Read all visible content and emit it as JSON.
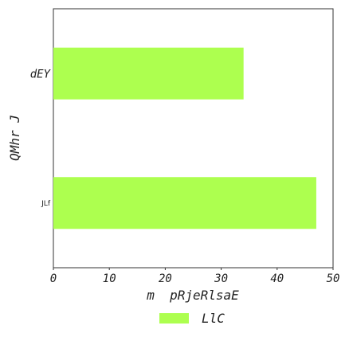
{
  "chart_data": {
    "type": "bar",
    "orientation": "horizontal",
    "categories": [
      "dEY",
      "JLf"
    ],
    "series": [
      {
        "name": "LlC",
        "values": [
          34,
          47
        ],
        "color": "#adff4f"
      }
    ],
    "xlabel": "m  pRjeRlsaE",
    "ylabel": "QMhr J",
    "xlim": [
      0,
      50
    ],
    "xticks": [
      0,
      10,
      20,
      30,
      40,
      50
    ],
    "grid": false,
    "legend_position": "bottom-center"
  }
}
